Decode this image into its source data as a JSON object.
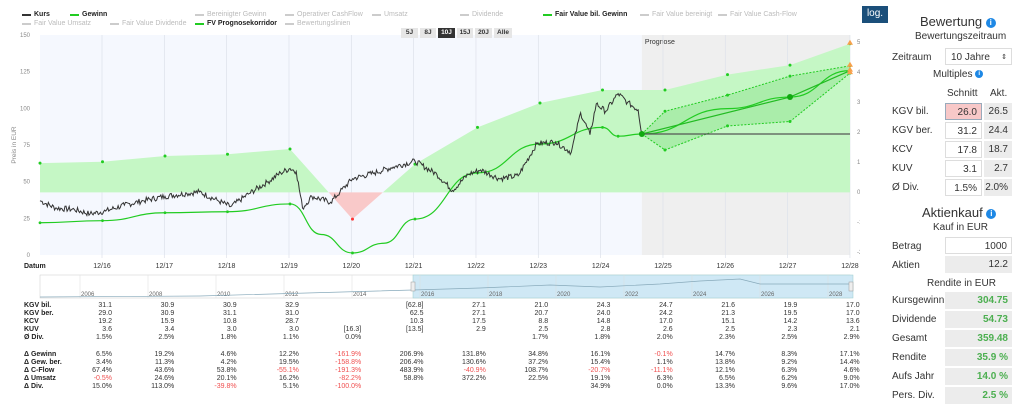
{
  "legend": [
    {
      "label": "Kurs",
      "active": true,
      "color": "#333333"
    },
    {
      "label": "Gewinn",
      "active": true,
      "color": "#22cc22"
    },
    {
      "label": "Bereinigter Gewinn",
      "active": false
    },
    {
      "label": "Operativer CashFlow",
      "active": false
    },
    {
      "label": "Umsatz",
      "active": false
    },
    {
      "label": "Dividende",
      "active": false
    },
    {
      "label": "Fair Value bil. Gewinn",
      "active": true,
      "color": "#22cc22"
    },
    {
      "label": "Fair Value bereinigt",
      "active": false
    },
    {
      "label": "Fair Value Cash-Flow",
      "active": false
    },
    {
      "label": "Fair Value Umsatz",
      "active": false
    },
    {
      "label": "Fair Value Dividende",
      "active": false
    },
    {
      "label": "FV Prognosekorridor",
      "active": true,
      "color": "#22cc22"
    },
    {
      "label": "Bewertungslinien",
      "active": false
    }
  ],
  "ranges": [
    "5J",
    "8J",
    "10J",
    "15J",
    "20J",
    "Alle"
  ],
  "active_range": "10J",
  "log_label": "log.",
  "chart_data": {
    "type": "line",
    "ylabel_left": "Preis in EUR",
    "ylabel_right": "Kennzahlen pro Aktie in EUR",
    "xlabel": "Datum",
    "prognose_label": "Prognose",
    "ylim_left": [
      0,
      150
    ],
    "yticks_left": [
      0,
      25,
      50,
      75,
      100,
      125,
      150
    ],
    "ylim_right": [
      -2,
      5.3
    ],
    "yticks_right": [
      5,
      4,
      3,
      2,
      1,
      0,
      -1,
      -2
    ],
    "xticks": [
      "12/16",
      "12/17",
      "12/18",
      "12/19",
      "12/20",
      "12/21",
      "12/22",
      "12/23",
      "12/24",
      "12/25",
      "12/26",
      "12/27",
      "12/28"
    ],
    "grid": true,
    "prognose_start": 2025.58,
    "fair_value_band_floor": 42.7,
    "fair_value_points": [
      [
        2015.95,
        62.6
      ],
      [
        2016.95,
        63.6
      ],
      [
        2017.95,
        67.5
      ],
      [
        2018.95,
        68.7
      ],
      [
        2019.95,
        72.3
      ],
      [
        2020.95,
        24.5
      ],
      [
        2021.95,
        62
      ],
      [
        2022.95,
        87
      ],
      [
        2023.95,
        103.6
      ],
      [
        2024.95,
        112.5
      ],
      [
        2025.95,
        112.5
      ],
      [
        2026.95,
        123
      ],
      [
        2027.95,
        129.5
      ],
      [
        2028.95,
        144
      ]
    ],
    "fair_value_bil_gewinn": [
      [
        2015.95,
        22
      ],
      [
        2016.95,
        23.4
      ],
      [
        2017.95,
        28.8
      ],
      [
        2018.95,
        29.5
      ],
      [
        2019.95,
        34.8
      ],
      [
        2020.45,
        14
      ],
      [
        2020.95,
        1.4
      ],
      [
        2021.45,
        8
      ],
      [
        2021.95,
        24.5
      ],
      [
        2022.95,
        56
      ],
      [
        2023.95,
        75.7
      ],
      [
        2024.95,
        87
      ],
      [
        2025.2,
        81
      ],
      [
        2025.58,
        82.5
      ],
      [
        2026.95,
        99.8
      ],
      [
        2027.95,
        107.7
      ],
      [
        2028.95,
        125.7
      ]
    ],
    "fv_corridor_upper": [
      [
        2025.58,
        82.5
      ],
      [
        2025.95,
        98
      ],
      [
        2026.95,
        109
      ],
      [
        2027.95,
        122
      ],
      [
        2028.95,
        129
      ]
    ],
    "fv_corridor_lower": [
      [
        2025.58,
        82.5
      ],
      [
        2025.95,
        71.6
      ],
      [
        2026.95,
        88
      ],
      [
        2027.95,
        91
      ],
      [
        2028.95,
        124
      ]
    ],
    "fv_straight": [
      [
        2025.58,
        82.5
      ],
      [
        2027.95,
        107.7
      ],
      [
        2028.95,
        125.7
      ]
    ],
    "current_price": 82.5,
    "forecast_targets": [
      144,
      125.7,
      129,
      124
    ],
    "kurs": [
      [
        2015.95,
        37
      ],
      [
        2016.2,
        32
      ],
      [
        2016.5,
        31
      ],
      [
        2016.75,
        28
      ],
      [
        2017.0,
        30
      ],
      [
        2017.3,
        34
      ],
      [
        2017.6,
        37
      ],
      [
        2017.95,
        40
      ],
      [
        2018.3,
        42
      ],
      [
        2018.5,
        43
      ],
      [
        2018.8,
        37
      ],
      [
        2019.0,
        33
      ],
      [
        2019.3,
        42
      ],
      [
        2019.6,
        50
      ],
      [
        2019.8,
        56
      ],
      [
        2019.95,
        59
      ],
      [
        2020.05,
        57
      ],
      [
        2020.15,
        32
      ],
      [
        2020.3,
        40
      ],
      [
        2020.6,
        36
      ],
      [
        2020.75,
        43
      ],
      [
        2020.95,
        52
      ],
      [
        2021.3,
        56
      ],
      [
        2021.6,
        60
      ],
      [
        2021.95,
        64
      ],
      [
        2022.3,
        55
      ],
      [
        2022.55,
        44
      ],
      [
        2022.8,
        55
      ],
      [
        2023.0,
        58
      ],
      [
        2023.3,
        52
      ],
      [
        2023.6,
        54
      ],
      [
        2023.9,
        76
      ],
      [
        2024.2,
        77
      ],
      [
        2024.45,
        70
      ],
      [
        2024.6,
        97
      ],
      [
        2024.75,
        82
      ],
      [
        2024.85,
        103
      ],
      [
        2025.0,
        98
      ],
      [
        2025.2,
        110
      ],
      [
        2025.35,
        104
      ],
      [
        2025.52,
        99
      ],
      [
        2025.58,
        82.5
      ]
    ]
  },
  "navigator": {
    "years": [
      "2006",
      "2008",
      "2010",
      "2012",
      "2014",
      "2016",
      "2018",
      "2020",
      "2022",
      "2024",
      "2026",
      "2028"
    ]
  },
  "table": {
    "rows1": [
      {
        "label": "KGV bil.",
        "values": [
          "31.1",
          "30.9",
          "30.9",
          "32.9",
          "",
          "[62.8]",
          "27.1",
          "21.0",
          "24.3",
          "24.7",
          "21.6",
          "19.9",
          "17.0"
        ]
      },
      {
        "label": "KGV ber.",
        "values": [
          "29.0",
          "30.9",
          "31.1",
          "31.0",
          "",
          "62.5",
          "27.1",
          "20.7",
          "24.0",
          "24.2",
          "21.3",
          "19.5",
          "17.0"
        ]
      },
      {
        "label": "KCV",
        "values": [
          "19.2",
          "15.9",
          "10.8",
          "28.7",
          "",
          "10.3",
          "17.5",
          "8.8",
          "14.8",
          "17.0",
          "15.1",
          "14.2",
          "13.6"
        ]
      },
      {
        "label": "KUV",
        "values": [
          "3.6",
          "3.4",
          "3.0",
          "3.0",
          "[16.3]",
          "[13.5]",
          "2.9",
          "2.5",
          "2.8",
          "2.6",
          "2.5",
          "2.3",
          "2.1"
        ]
      },
      {
        "label": "Ø Div.",
        "values": [
          "1.5%",
          "2.5%",
          "1.8%",
          "1.1%",
          "0.0%",
          "",
          "",
          "1.7%",
          "1.8%",
          "2.0%",
          "2.3%",
          "2.5%",
          "2.9%"
        ]
      }
    ],
    "rows2": [
      {
        "label": "Δ Gewinn",
        "values": [
          "6.5%",
          "19.2%",
          "4.6%",
          "12.2%",
          "-161.9%",
          "206.9%",
          "131.8%",
          "34.8%",
          "16.1%",
          "-0.1%",
          "14.7%",
          "8.3%",
          "17.1%"
        ]
      },
      {
        "label": "Δ Gew. ber.",
        "values": [
          "3.4%",
          "11.3%",
          "4.2%",
          "19.5%",
          "-158.8%",
          "206.4%",
          "130.6%",
          "37.2%",
          "15.4%",
          "1.1%",
          "13.8%",
          "9.2%",
          "14.4%"
        ]
      },
      {
        "label": "Δ C-Flow",
        "values": [
          "67.4%",
          "43.6%",
          "53.8%",
          "-55.1%",
          "-191.3%",
          "483.9%",
          "-40.9%",
          "108.7%",
          "-20.7%",
          "-11.1%",
          "12.1%",
          "6.3%",
          "4.6%"
        ]
      },
      {
        "label": "Δ Umsatz",
        "values": [
          "-0.5%",
          "24.6%",
          "20.1%",
          "16.2%",
          "-82.2%",
          "58.8%",
          "372.2%",
          "22.5%",
          "19.1%",
          "6.3%",
          "6.5%",
          "6.2%",
          "9.0%"
        ]
      },
      {
        "label": "Δ Div.",
        "values": [
          "15.0%",
          "113.0%",
          "-39.8%",
          "5.1%",
          "-100.0%",
          "",
          "",
          "",
          "34.9%",
          "0.0%",
          "13.3%",
          "9.6%",
          "17.0%"
        ]
      }
    ]
  },
  "panel": {
    "bewertung_title": "Bewertung",
    "zeitraum_heading": "Bewertungszeitraum",
    "zeitraum_label": "Zeitraum",
    "zeitraum_value": "10 Jahre",
    "multiples_title": "Multiples",
    "col_schnitt": "Schnitt",
    "col_akt": "Akt.",
    "multiples": [
      {
        "label": "KGV bil.",
        "schnitt": "26.0",
        "akt": "26.5",
        "highlight": true
      },
      {
        "label": "KGV ber.",
        "schnitt": "31.2",
        "akt": "24.4"
      },
      {
        "label": "KCV",
        "schnitt": "17.8",
        "akt": "18.7"
      },
      {
        "label": "KUV",
        "schnitt": "3.1",
        "akt": "2.7"
      },
      {
        "label": "Ø Div.",
        "schnitt": "1.5%",
        "akt": "2.0%"
      }
    ],
    "aktienkauf_title": "Aktienkauf",
    "kauf_heading": "Kauf in EUR",
    "betrag_label": "Betrag",
    "betrag_value": "1000",
    "aktien_label": "Aktien",
    "aktien_value": "12.2",
    "rendite_heading": "Rendite in EUR",
    "results": [
      {
        "label": "Kursgewinn",
        "value": "304.75"
      },
      {
        "label": "Dividende",
        "value": "54.73"
      },
      {
        "label": "Gesamt",
        "value": "359.48"
      },
      {
        "label": "Rendite",
        "value": "35.9 %"
      },
      {
        "label": "Aufs Jahr",
        "value": "14.0 %"
      },
      {
        "label": "Pers. Div.",
        "value": "2.5 %"
      }
    ],
    "accent": "#1e88e5",
    "positive_color": "#4caf50"
  }
}
